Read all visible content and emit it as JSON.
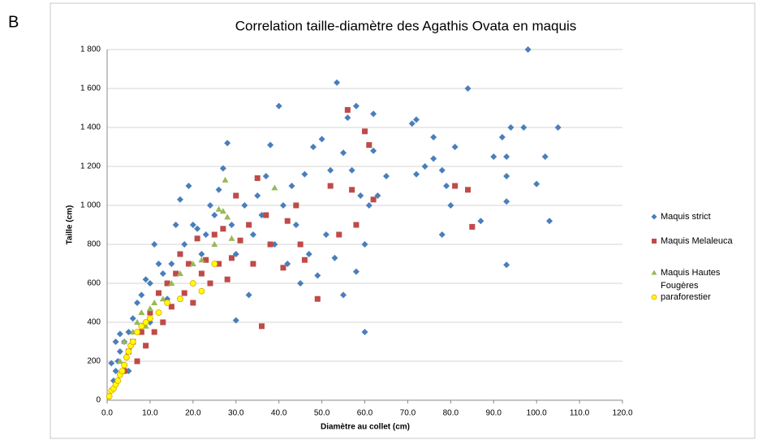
{
  "panel_label": "B",
  "chart_data": {
    "type": "scatter",
    "title": "Correlation taille-diamètre des Agathis Ovata en maquis",
    "x_label": "Diamètre au collet (cm)",
    "y_label": "Taille (cm)",
    "xlim": [
      0,
      120
    ],
    "ylim": [
      0,
      1800
    ],
    "xticks": [
      {
        "value": 0,
        "label": "0.0"
      },
      {
        "value": 10,
        "label": "10.0"
      },
      {
        "value": 20,
        "label": "20.0"
      },
      {
        "value": 30,
        "label": "30.0"
      },
      {
        "value": 40,
        "label": "40.0"
      },
      {
        "value": 50,
        "label": "50.0"
      },
      {
        "value": 60,
        "label": "60.0"
      },
      {
        "value": 70,
        "label": "70.0"
      },
      {
        "value": 80,
        "label": "80.0"
      },
      {
        "value": 90,
        "label": "90.0"
      },
      {
        "value": 100,
        "label": "100.0"
      },
      {
        "value": 110,
        "label": "110.0"
      },
      {
        "value": 120,
        "label": "120.0"
      }
    ],
    "yticks": [
      0,
      200,
      400,
      600,
      800,
      {
        "value": 1000,
        "label": "1 000"
      },
      {
        "value": 1200,
        "label": "1 200"
      },
      {
        "value": 1400,
        "label": "1 400"
      },
      {
        "value": 1600,
        "label": "1 600"
      },
      {
        "value": 1800,
        "label": "1 800"
      }
    ],
    "grid": true,
    "legend": "right",
    "series": [
      {
        "name": "Maquis strict",
        "color": "#4a7ebb",
        "marker": "diamond",
        "x": [
          0.5,
          1,
          1.5,
          2,
          2.5,
          3,
          1,
          2,
          3,
          4,
          5,
          5,
          6,
          7,
          8,
          9,
          10,
          10,
          11,
          12,
          13,
          14,
          15,
          16,
          17,
          18,
          19,
          20,
          21,
          22,
          23,
          24,
          25,
          26,
          27,
          28,
          29,
          30,
          30,
          32,
          33,
          34,
          35,
          36,
          37,
          38,
          39,
          40,
          41,
          42,
          43,
          44,
          45,
          46,
          47,
          48,
          49,
          50,
          51,
          52,
          53,
          53.5,
          55,
          55,
          56,
          57,
          58,
          58,
          59,
          60,
          60,
          61,
          62,
          62,
          63,
          65,
          71,
          72,
          72,
          74,
          76,
          76,
          78,
          78,
          79,
          80,
          81,
          84,
          87,
          90,
          92,
          93,
          93,
          93,
          93,
          94,
          97,
          98,
          100,
          102,
          103,
          105
        ],
        "values": [
          20,
          50,
          100,
          150,
          200,
          250,
          190,
          300,
          340,
          300,
          350,
          150,
          420,
          500,
          540,
          620,
          600,
          400,
          800,
          700,
          650,
          520,
          700,
          900,
          1030,
          800,
          1100,
          900,
          880,
          750,
          850,
          1000,
          950,
          1080,
          1190,
          1320,
          900,
          410,
          750,
          1000,
          540,
          850,
          1050,
          950,
          1150,
          1310,
          800,
          1510,
          1000,
          700,
          1100,
          900,
          600,
          1160,
          750,
          1300,
          640,
          1340,
          850,
          1180,
          730,
          1630,
          1270,
          540,
          1450,
          1180,
          1510,
          660,
          1050,
          350,
          800,
          1000,
          1280,
          1470,
          1050,
          1150,
          1420,
          1440,
          1160,
          1200,
          1350,
          1240,
          850,
          1180,
          1100,
          1000,
          1300,
          1600,
          920,
          1250,
          1350,
          695,
          1020,
          1150,
          1250,
          1400,
          1400,
          1800,
          1110,
          1250,
          920,
          1400
        ]
      },
      {
        "name": "Maquis Melaleuca",
        "color": "#be4b48",
        "marker": "square",
        "x": [
          4,
          5,
          6,
          7,
          8,
          9,
          10,
          11,
          12,
          13,
          14,
          15,
          16,
          17,
          18,
          19,
          20,
          21,
          22,
          23,
          24,
          25,
          26,
          27,
          28,
          29,
          30,
          31,
          33,
          34,
          35,
          36,
          37,
          38,
          41,
          42,
          44,
          45,
          46,
          49,
          52,
          54,
          56,
          57,
          58,
          60,
          61,
          62,
          81,
          84,
          85
        ],
        "values": [
          150,
          250,
          300,
          200,
          350,
          280,
          450,
          350,
          550,
          400,
          600,
          480,
          650,
          750,
          550,
          700,
          500,
          830,
          650,
          720,
          600,
          850,
          700,
          880,
          620,
          730,
          1050,
          820,
          900,
          700,
          1140,
          380,
          950,
          800,
          680,
          920,
          1000,
          800,
          720,
          520,
          1100,
          850,
          1490,
          1080,
          900,
          1380,
          1310,
          1030,
          1100,
          1080,
          890
        ]
      },
      {
        "name": "Maquis Hautes Fougères",
        "color": "#98b954",
        "marker": "triangle",
        "x": [
          3,
          4,
          5,
          6,
          7,
          8,
          9,
          10,
          11,
          13,
          15,
          17,
          20,
          22,
          25,
          26,
          27,
          27.5,
          28,
          29,
          39
        ],
        "values": [
          200,
          300,
          250,
          350,
          400,
          450,
          380,
          470,
          500,
          520,
          600,
          650,
          700,
          720,
          800,
          980,
          970,
          1130,
          940,
          830,
          1090
        ]
      },
      {
        "name": "paraforestier",
        "color": "#ffff00",
        "marker": "circle",
        "x": [
          0.5,
          1,
          1.5,
          2,
          2.5,
          3,
          3.5,
          4,
          4.5,
          5,
          5.5,
          6,
          7,
          8,
          9,
          10,
          12,
          14,
          17,
          20,
          22,
          25
        ],
        "values": [
          20,
          50,
          60,
          80,
          100,
          130,
          150,
          180,
          220,
          250,
          280,
          300,
          350,
          380,
          400,
          420,
          450,
          500,
          520,
          600,
          560,
          700
        ]
      }
    ]
  }
}
